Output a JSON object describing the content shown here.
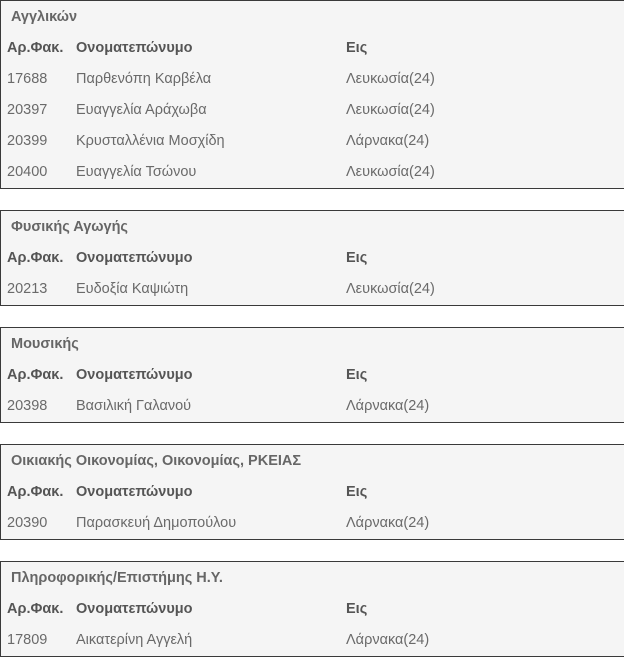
{
  "columns": {
    "file_no": "Αρ.Φακ.",
    "name": "Ονοματεπώνυμο",
    "to": "Εις"
  },
  "sections": [
    {
      "title": "Αγγλικών",
      "rows": [
        {
          "file_no": "17688",
          "name": "Παρθενόπη Καρβέλα",
          "to": "Λευκωσία(24)"
        },
        {
          "file_no": "20397",
          "name": "Ευαγγελία Αράχωβα",
          "to": "Λευκωσία(24)"
        },
        {
          "file_no": "20399",
          "name": "Κρυσταλλένια Μοσχίδη",
          "to": "Λάρνακα(24)"
        },
        {
          "file_no": "20400",
          "name": "Ευαγγελία Τσώνου",
          "to": "Λευκωσία(24)"
        }
      ]
    },
    {
      "title": "Φυσικής Αγωγής",
      "rows": [
        {
          "file_no": "20213",
          "name": "Ευδοξία Καψιώτη",
          "to": "Λευκωσία(24)"
        }
      ]
    },
    {
      "title": "Μουσικής",
      "rows": [
        {
          "file_no": "20398",
          "name": "Βασιλική Γαλανού",
          "to": "Λάρνακα(24)"
        }
      ]
    },
    {
      "title": "Οικιακής Οικονομίας, Οικονομίας, ΡΚΕΙΑΣ",
      "rows": [
        {
          "file_no": "20390",
          "name": "Παρασκευή Δημοπούλου",
          "to": "Λάρνακα(24)"
        }
      ]
    },
    {
      "title": "Πληροφορικής/Επιστήμης Η.Υ.",
      "rows": [
        {
          "file_no": "17809",
          "name": "Αικατερίνη Αγγελή",
          "to": "Λάρνακα(24)"
        }
      ]
    }
  ]
}
